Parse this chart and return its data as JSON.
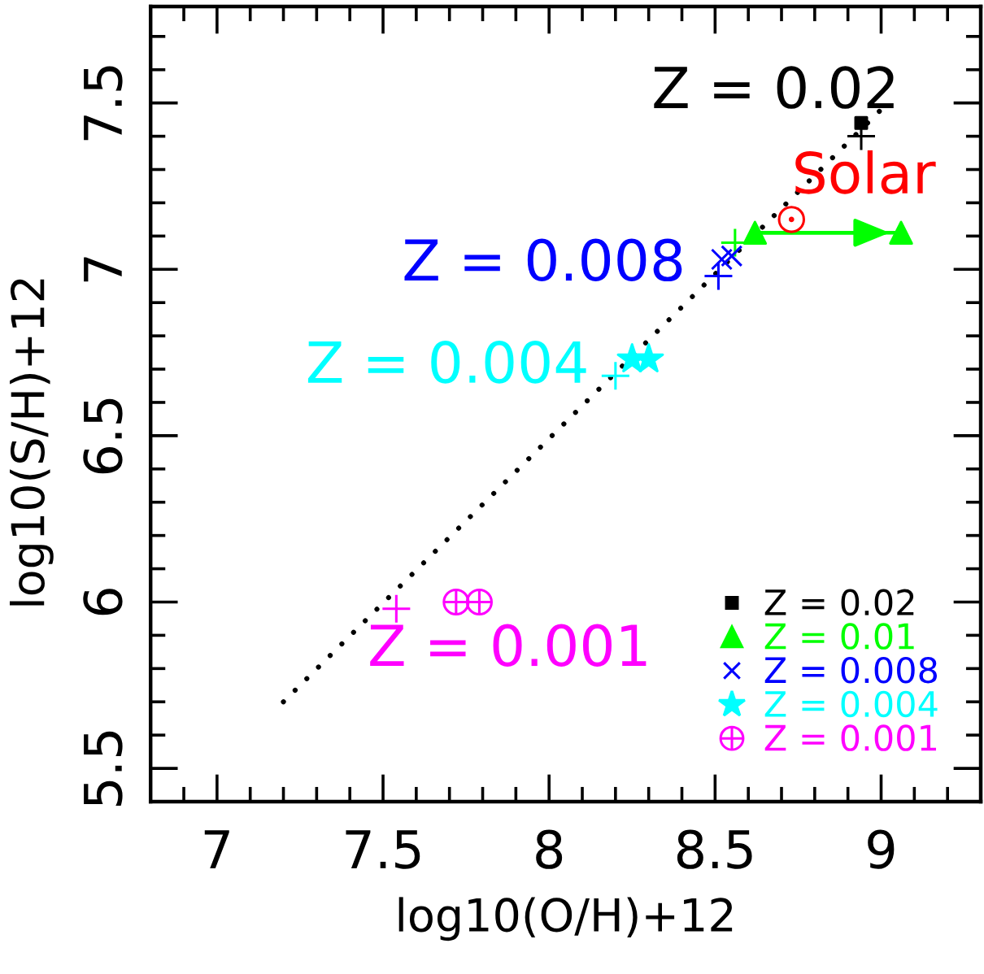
{
  "chart_data": {
    "type": "scatter",
    "xlabel": "log10(O/H)+12",
    "ylabel": "log10(S/H)+12",
    "xlim": [
      6.8,
      9.3
    ],
    "ylim": [
      5.4,
      7.79
    ],
    "xticks": [
      {
        "value": 6.9,
        "label": null
      },
      7,
      {
        "value": 7.1,
        "label": null
      },
      {
        "value": 7.2,
        "label": null
      },
      {
        "value": 7.3,
        "label": null
      },
      {
        "value": 7.4,
        "label": null
      },
      7.5,
      {
        "value": 7.6,
        "label": null
      },
      {
        "value": 7.7,
        "label": null
      },
      {
        "value": 7.8,
        "label": null
      },
      {
        "value": 7.9,
        "label": null
      },
      8,
      {
        "value": 8.1,
        "label": null
      },
      {
        "value": 8.2,
        "label": null
      },
      {
        "value": 8.3,
        "label": null
      },
      {
        "value": 8.4,
        "label": null
      },
      8.5,
      {
        "value": 8.6,
        "label": null
      },
      {
        "value": 8.7,
        "label": null
      },
      {
        "value": 8.8,
        "label": null
      },
      {
        "value": 8.9,
        "label": null
      },
      9,
      {
        "value": 9.1,
        "label": null
      },
      {
        "value": 9.2,
        "label": null
      }
    ],
    "yticks": [
      5.5,
      {
        "value": 5.6,
        "label": null
      },
      {
        "value": 5.7,
        "label": null
      },
      {
        "value": 5.8,
        "label": null
      },
      {
        "value": 5.9,
        "label": null
      },
      6,
      {
        "value": 6.1,
        "label": null
      },
      {
        "value": 6.2,
        "label": null
      },
      {
        "value": 6.3,
        "label": null
      },
      {
        "value": 6.4,
        "label": null
      },
      6.5,
      {
        "value": 6.6,
        "label": null
      },
      {
        "value": 6.7,
        "label": null
      },
      {
        "value": 6.8,
        "label": null
      },
      {
        "value": 6.9,
        "label": null
      },
      7,
      {
        "value": 7.1,
        "label": null
      },
      {
        "value": 7.2,
        "label": null
      },
      {
        "value": 7.3,
        "label": null
      },
      {
        "value": 7.4,
        "label": null
      },
      7.5,
      {
        "value": 7.6,
        "label": null
      },
      {
        "value": 7.7,
        "label": null
      }
    ],
    "grid": false,
    "legend": "bottom right",
    "series": [
      {
        "type": "line",
        "color": "#000000",
        "line_style": "dotted",
        "marker": "none",
        "x": [
          7.2,
          9.01
        ],
        "values": [
          5.7,
          7.49
        ]
      },
      {
        "marker": "plus",
        "colors": [
          "#ff00ff",
          "#00ffff",
          "#0000ff",
          "#00ff00",
          "#000000"
        ],
        "x": [
          7.54,
          8.2,
          8.51,
          8.56,
          8.94
        ],
        "values": [
          5.98,
          6.68,
          6.98,
          7.08,
          7.4
        ]
      },
      {
        "name": "Z = 0.02",
        "color": "#000000",
        "marker": "square",
        "x": [
          8.94
        ],
        "values": [
          7.44
        ]
      },
      {
        "name": "Z = 0.01",
        "type": "line",
        "line_style": "solid",
        "color": "#00ff00",
        "marker": "triangle",
        "x": [
          8.62,
          9.06
        ],
        "values": [
          7.11,
          7.11
        ]
      },
      {
        "name": "Z = 0.008",
        "color": "#0000ff",
        "marker": "cross",
        "x": [
          8.52,
          8.55
        ],
        "values": [
          7.03,
          7.04
        ]
      },
      {
        "name": "Z = 0.004",
        "color": "#00ffff",
        "marker": "star",
        "x": [
          8.25,
          8.3
        ],
        "values": [
          6.73,
          6.73
        ]
      },
      {
        "name": "Z = 0.001",
        "color": "#ff00ff",
        "x": [
          7.72,
          7.79
        ],
        "values": [
          6.0,
          6.0
        ]
      },
      {
        "color": "#ff0000",
        "marker": "circled_dot",
        "x": [
          8.73
        ],
        "values": [
          7.15
        ]
      }
    ],
    "annotations": [
      {
        "text": "Z = 0.02",
        "x": 8.94,
        "y": 7.44
      },
      {
        "text": "Solar",
        "x": 8.73,
        "y": 7.15
      },
      {
        "text": "Z = 0.008",
        "x": 8.52,
        "y": 7.03
      },
      {
        "text": "Z = 0.004",
        "x": 8.25,
        "y": 6.73
      },
      {
        "text": "Z = 0.001",
        "x": 7.72,
        "y": 6.0
      }
    ]
  }
}
